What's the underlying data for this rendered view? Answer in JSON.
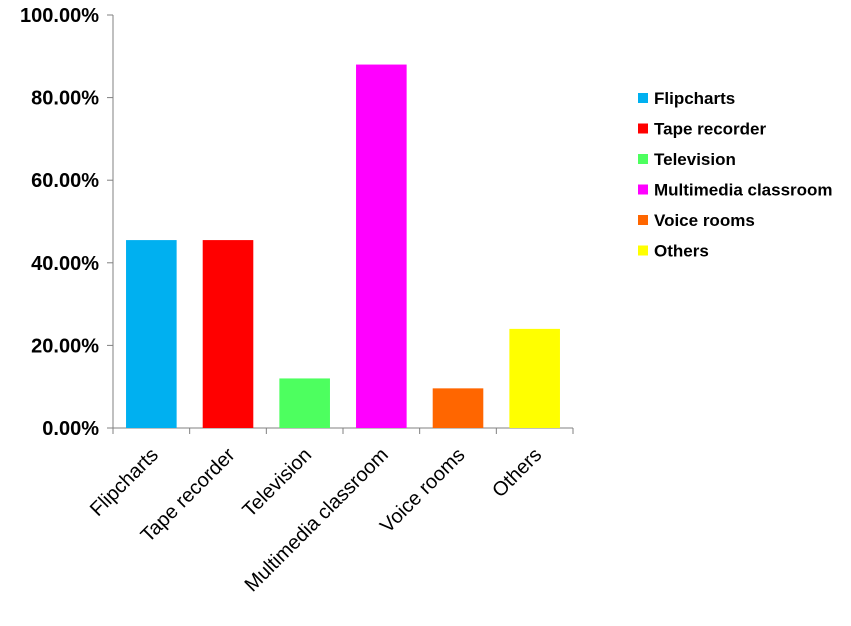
{
  "chart_data": {
    "type": "bar",
    "title": "",
    "xlabel": "",
    "ylabel": "",
    "categories": [
      "Flipcharts",
      "Tape recorder",
      "Television",
      "Multimedia classroom",
      "Voice rooms",
      "Others"
    ],
    "values": [
      45.5,
      45.5,
      12.0,
      88.0,
      9.6,
      24.0
    ],
    "colors": [
      "#00B0F0",
      "#FF0000",
      "#4DFF5F",
      "#FF00FF",
      "#FF6600",
      "#FFFF00"
    ],
    "ylim": [
      0,
      100
    ],
    "yticks": [
      0,
      20,
      40,
      60,
      80,
      100
    ],
    "ytick_labels": [
      "0.00%",
      "20.00%",
      "40.00%",
      "60.00%",
      "80.00%",
      "100.00%"
    ],
    "grid": false,
    "legend": {
      "placement": "right",
      "entries": [
        "Flipcharts",
        "Tape recorder",
        "Television",
        "Multimedia classroom",
        "Voice rooms",
        "Others"
      ]
    }
  }
}
